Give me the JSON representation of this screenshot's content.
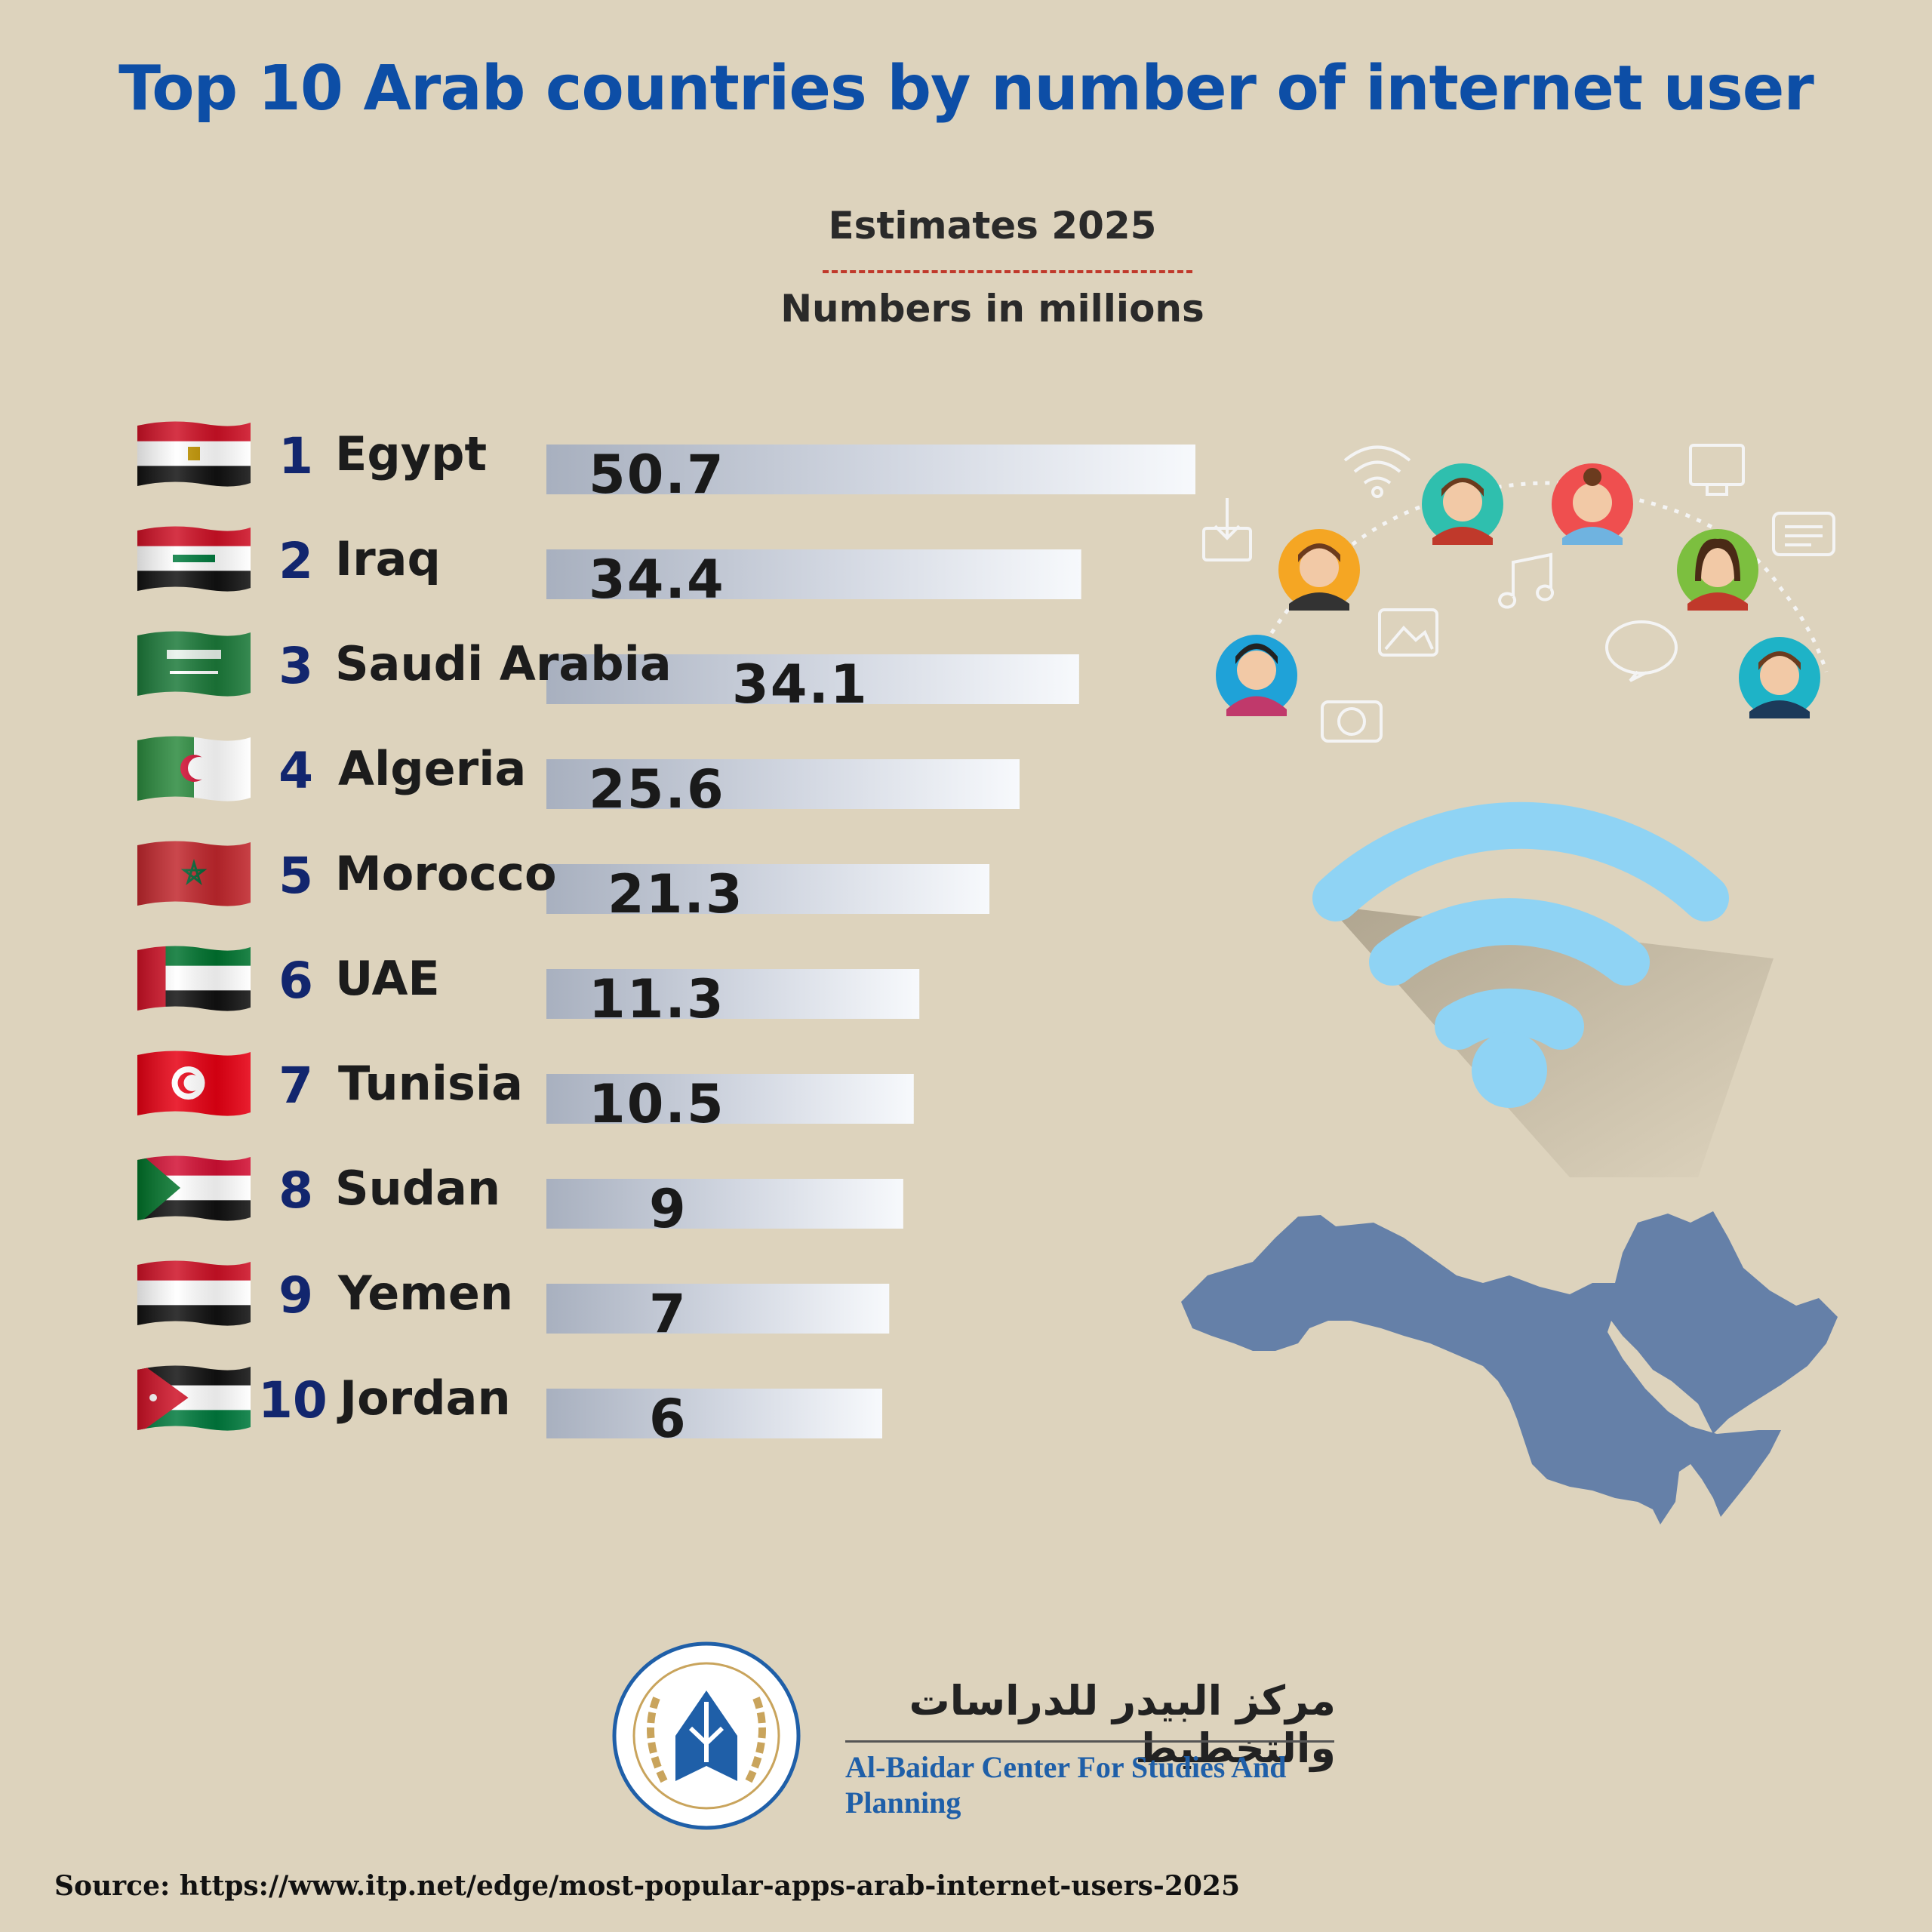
{
  "title": "Top 10 Arab countries by number of internet user",
  "subtitle_estimates": "Estimates 2025",
  "subtitle_units": "Numbers in millions",
  "colors": {
    "background": "#ddd3bd",
    "title": "#0d4ea6",
    "rank": "#12266e",
    "bar_start": "#a8b0bf",
    "bar_end": "#f7f9fc",
    "wifi": "#8fd3f4",
    "map": "#6580a8"
  },
  "chart_data": {
    "type": "bar",
    "orientation": "horizontal",
    "title": "Top 10 Arab countries by number of internet user",
    "subtitle": "Estimates 2025",
    "unit_note": "Numbers in millions",
    "categories": [
      "Egypt",
      "Iraq",
      "Saudi Arabia",
      "Algeria",
      "Morocco",
      "UAE",
      "Tunisia",
      "Sudan",
      "Yemen",
      "Jordan"
    ],
    "ranks": [
      "1",
      "2",
      "3",
      "4",
      "5",
      "6",
      "7",
      "8",
      "9",
      "10"
    ],
    "values": [
      50.7,
      34.4,
      34.1,
      25.6,
      21.3,
      11.3,
      10.5,
      9,
      7,
      6
    ],
    "value_labels": [
      "50.7",
      "34.4",
      "34.1",
      "25.6",
      "21.3",
      "11.3",
      "10.5",
      "9",
      "7",
      "6"
    ],
    "flags": [
      "egypt-flag",
      "iraq-flag",
      "saudi-arabia-flag",
      "algeria-flag",
      "morocco-flag",
      "uae-flag",
      "tunisia-flag",
      "sudan-flag",
      "yemen-flag",
      "jordan-flag"
    ],
    "grid": false,
    "legend": "none"
  },
  "logo": {
    "org_name_ar": "مركز البيدر للدراسات والتخطيط",
    "org_name_en": "Al-Baidar Center For Studies And Planning"
  },
  "source": "Source: https://www.itp.net/edge/most-popular-apps-arab-internet-users-2025"
}
